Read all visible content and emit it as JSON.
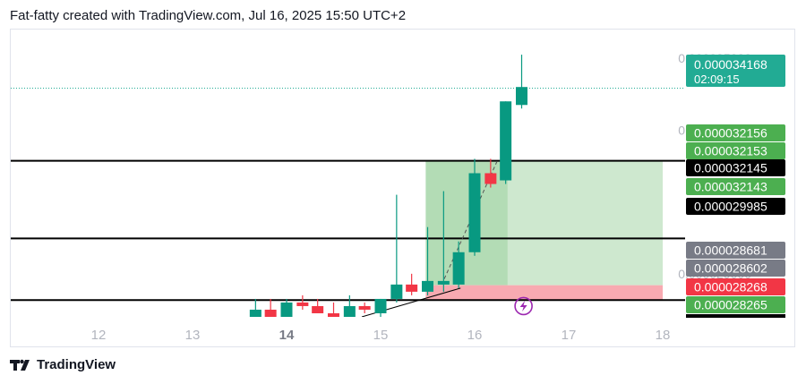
{
  "header": {
    "text": "Fat-fatty created with TradingView.com, Jul 16, 2025 15:50 UTC+2"
  },
  "footer": {
    "brand": "TradingView"
  },
  "colors": {
    "up": "#089981",
    "down": "#f23645",
    "last_price_line": "#22ab94",
    "target_zone": "#a5d6a7",
    "stop_zone": "#f7a1a8",
    "lightning": "#9c27b0"
  },
  "chart_data": {
    "type": "candlestick",
    "xlabel": "",
    "ylabel": "",
    "x_ticks": [
      "12",
      "13",
      "14",
      "15",
      "16",
      "17",
      "18"
    ],
    "x_bold_tick": "14",
    "y_ticks": [
      "0.000035000",
      "0.000033000",
      "0.000029000"
    ],
    "ylim": [
      2.78e-05,
      3.58e-05
    ],
    "grid": false,
    "last_price": {
      "value": "0.000034168",
      "countdown": "02:09:15"
    },
    "price_labels": [
      {
        "value": "0.000032156",
        "style": "green"
      },
      {
        "value": "0.000032153",
        "style": "green"
      },
      {
        "value": "0.000032145",
        "style": "black"
      },
      {
        "value": "0.000032143",
        "style": "green"
      },
      {
        "value": "0.000029985",
        "style": "black"
      },
      {
        "value": "0.000028681",
        "style": "gray"
      },
      {
        "value": "0.000028602",
        "style": "gray"
      },
      {
        "value": "0.000028268",
        "style": "red"
      },
      {
        "value": "0.000028265",
        "style": "green"
      }
    ],
    "horizontal_lines": [
      3.2145e-05,
      2.9985e-05,
      2.8268e-05
    ],
    "target_zone": {
      "x_start": 15.48,
      "x_end": 18.0,
      "y_low": 2.8681e-05,
      "y_high": 3.2156e-05,
      "dark_x_end": 16.35
    },
    "stop_zone": {
      "x_start": 15.48,
      "x_end": 18.0,
      "y_low": 2.8265e-05,
      "y_high": 2.8681e-05
    },
    "trendline": {
      "x1": 14.8,
      "y1": 2.78e-05,
      "x2": 15.85,
      "y2": 2.86e-05
    },
    "dashed_line": {
      "x1": 15.65,
      "y1": 2.87e-05,
      "x2": 16.25,
      "y2": 3.22e-05
    },
    "lightning_marker": {
      "x": 16.52,
      "y": 2.81e-05
    },
    "candles": [
      {
        "t": 13.67,
        "o": 2.78e-05,
        "h": 2.83e-05,
        "l": 2.78e-05,
        "c": 2.8e-05
      },
      {
        "t": 13.83,
        "o": 2.8e-05,
        "h": 2.83e-05,
        "l": 2.78e-05,
        "c": 2.78e-05
      },
      {
        "t": 14.0,
        "o": 2.78e-05,
        "h": 2.83e-05,
        "l": 2.78e-05,
        "c": 2.82e-05
      },
      {
        "t": 14.17,
        "o": 2.82e-05,
        "h": 2.84e-05,
        "l": 2.8e-05,
        "c": 2.81e-05
      },
      {
        "t": 14.33,
        "o": 2.81e-05,
        "h": 2.83e-05,
        "l": 2.79e-05,
        "c": 2.79e-05
      },
      {
        "t": 14.5,
        "o": 2.79e-05,
        "h": 2.82e-05,
        "l": 2.78e-05,
        "c": 2.78e-05
      },
      {
        "t": 14.67,
        "o": 2.78e-05,
        "h": 2.84e-05,
        "l": 2.78e-05,
        "c": 2.81e-05
      },
      {
        "t": 14.83,
        "o": 2.81e-05,
        "h": 2.82e-05,
        "l": 2.79e-05,
        "c": 2.8e-05
      },
      {
        "t": 15.0,
        "o": 2.79e-05,
        "h": 2.83e-05,
        "l": 2.78e-05,
        "c": 2.83e-05
      },
      {
        "t": 15.17,
        "o": 2.83e-05,
        "h": 3.12e-05,
        "l": 2.82e-05,
        "c": 2.87e-05
      },
      {
        "t": 15.33,
        "o": 2.87e-05,
        "h": 2.9e-05,
        "l": 2.84e-05,
        "c": 2.85e-05
      },
      {
        "t": 15.5,
        "o": 2.85e-05,
        "h": 3.03e-05,
        "l": 2.84e-05,
        "c": 2.88e-05
      },
      {
        "t": 15.67,
        "o": 2.87e-05,
        "h": 3.13e-05,
        "l": 2.85e-05,
        "c": 2.88e-05
      },
      {
        "t": 15.83,
        "o": 2.87e-05,
        "h": 2.99e-05,
        "l": 2.86e-05,
        "c": 2.96e-05
      },
      {
        "t": 16.0,
        "o": 2.96e-05,
        "h": 3.22e-05,
        "l": 2.95e-05,
        "c": 3.18e-05
      },
      {
        "t": 16.17,
        "o": 3.18e-05,
        "h": 3.22e-05,
        "l": 3.14e-05,
        "c": 3.15e-05
      },
      {
        "t": 16.33,
        "o": 3.16e-05,
        "h": 3.38e-05,
        "l": 3.15e-05,
        "c": 3.38e-05
      },
      {
        "t": 16.5,
        "o": 3.37e-05,
        "h": 3.51e-05,
        "l": 3.36e-05,
        "c": 3.42e-05
      }
    ]
  }
}
